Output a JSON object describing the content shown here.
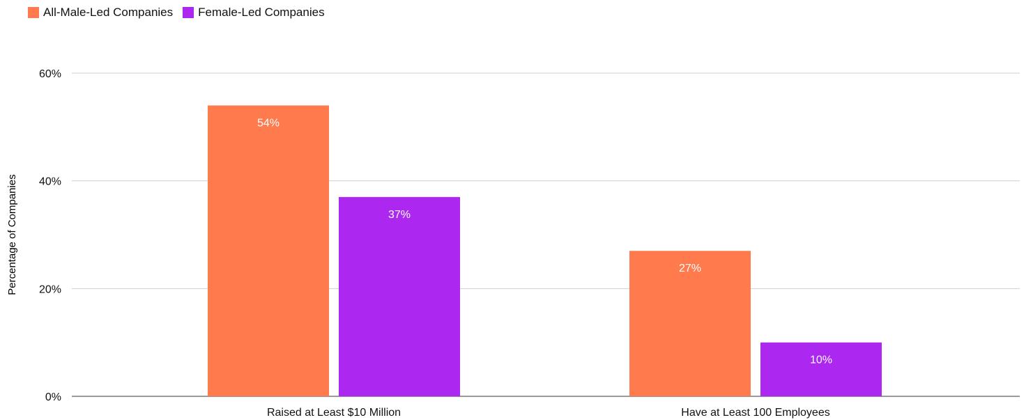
{
  "colors": {
    "male": "#FF7A4D",
    "female": "#AC28F1",
    "grid": "#CFCFCF",
    "axis": "#333333",
    "text": "#111111"
  },
  "chart_data": {
    "type": "bar",
    "title": "",
    "xlabel": "",
    "ylabel": "Percentage of Companies",
    "categories": [
      "Raised at Least $10 Million",
      "Have at Least 100 Employees"
    ],
    "series": [
      {
        "name": "All-Male-Led Companies",
        "values": [
          54,
          27
        ],
        "labels": [
          "54%",
          "27%"
        ]
      },
      {
        "name": "Female-Led Companies",
        "values": [
          37,
          10
        ],
        "labels": [
          "37%",
          "10%"
        ]
      }
    ],
    "ylim": [
      0,
      60
    ],
    "yticks": [
      "0%",
      "20%",
      "40%",
      "60%"
    ],
    "grid": true,
    "legend_position": "top-left"
  }
}
